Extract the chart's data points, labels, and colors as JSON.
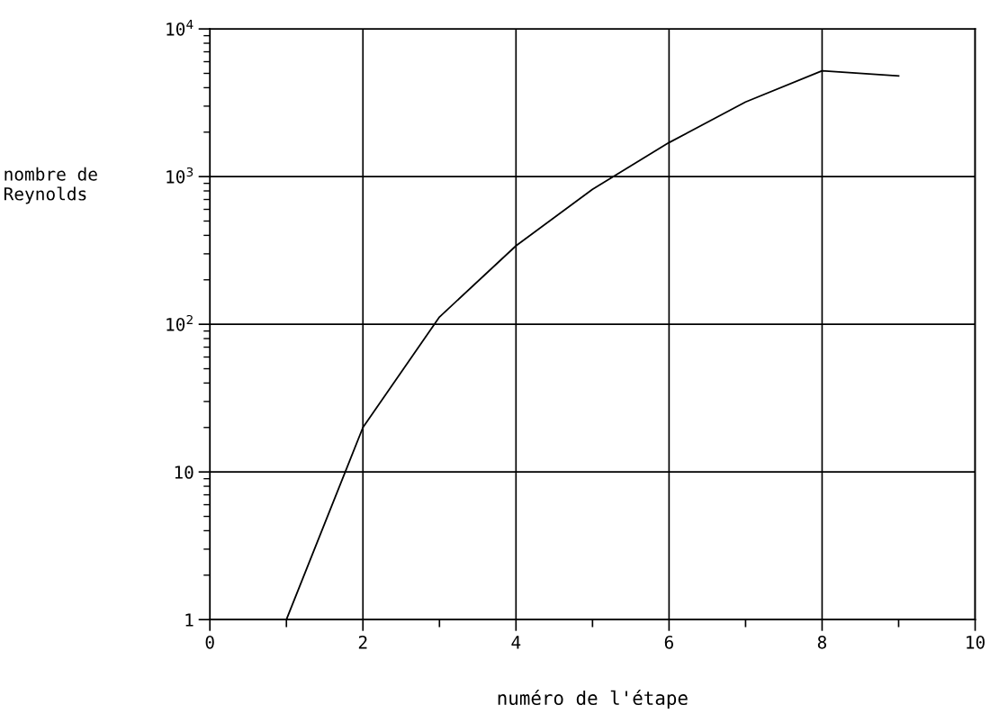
{
  "chart_data": {
    "type": "line",
    "xlabel": "numéro de l'étape",
    "ylabel": "nombre de\nReynolds",
    "x": [
      1,
      2,
      3,
      4,
      5,
      6,
      7,
      8,
      9
    ],
    "values": [
      1,
      20,
      112,
      340,
      820,
      1700,
      3200,
      5200,
      4800
    ],
    "color": "#000000",
    "log": true,
    "grid": true,
    "marker": "none",
    "line_style": "solid",
    "xlim": [
      0,
      10
    ],
    "xticks": [
      0,
      {
        "value": 1,
        "label": null
      },
      2,
      {
        "value": 3,
        "label": null
      },
      4,
      {
        "value": 5,
        "label": null
      },
      6,
      {
        "value": 7,
        "label": null
      },
      8,
      {
        "value": 9,
        "label": null
      },
      10
    ],
    "ylim": [
      1,
      10000
    ],
    "yticks": [
      1,
      10,
      {
        "value": 100,
        "label": "10$^{2}$"
      },
      {
        "value": 1000,
        "label": "10$^{3}$"
      },
      {
        "value": 10000,
        "label": "10$^{4}$"
      }
    ]
  }
}
